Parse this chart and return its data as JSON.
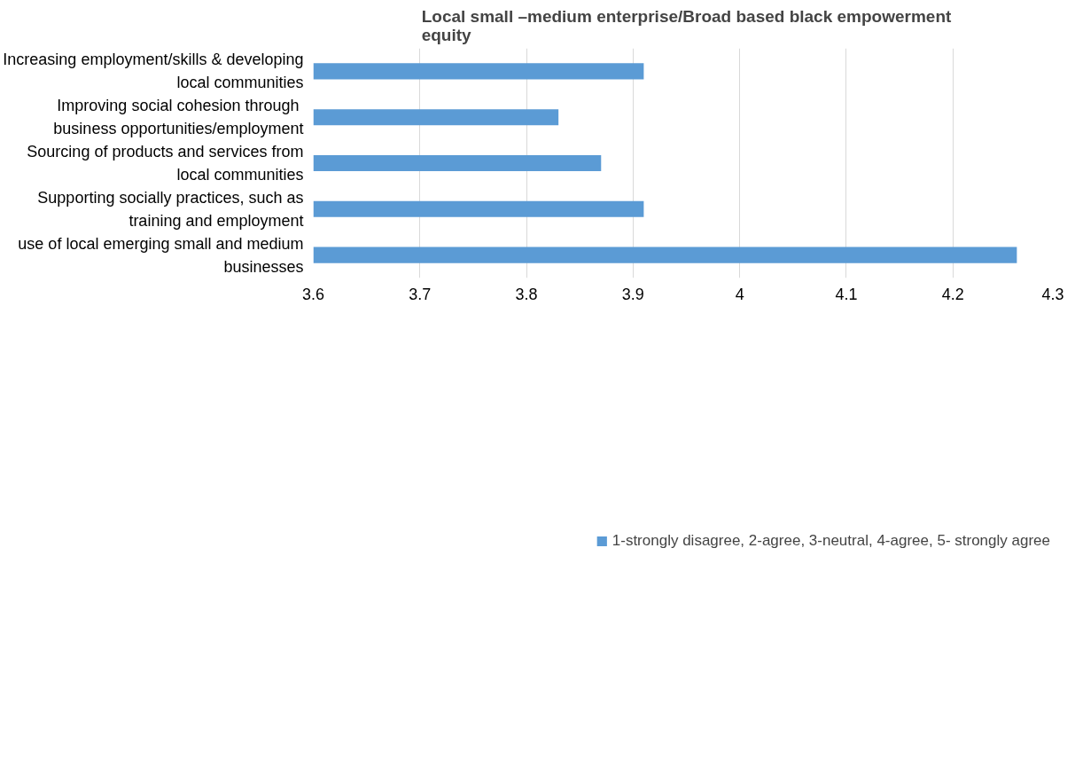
{
  "chart_data": {
    "type": "bar",
    "orientation": "horizontal",
    "title": "Local small –medium enterprise/Broad based black empowerment equity",
    "categories": [
      "Increasing employment/skills & developing local communities",
      "Improving social cohesion  through business opportunities/employment",
      "Sourcing of products and services from local communities",
      "Supporting socially practices, such as training and employment",
      "use of local emerging small and medium businesses"
    ],
    "series": [
      {
        "name": "1-strongly disagree, 2-agree, 3-neutral, 4-agree, 5- strongly agree",
        "color": "#5b9bd5",
        "values": [
          3.91,
          3.83,
          3.87,
          3.91,
          4.26
        ]
      }
    ],
    "xlim": [
      3.6,
      4.3
    ],
    "xticks": [
      3.6,
      3.7,
      3.8,
      3.9,
      4,
      4.1,
      4.2,
      4.3
    ],
    "grid": "x",
    "legend": "bottom"
  }
}
